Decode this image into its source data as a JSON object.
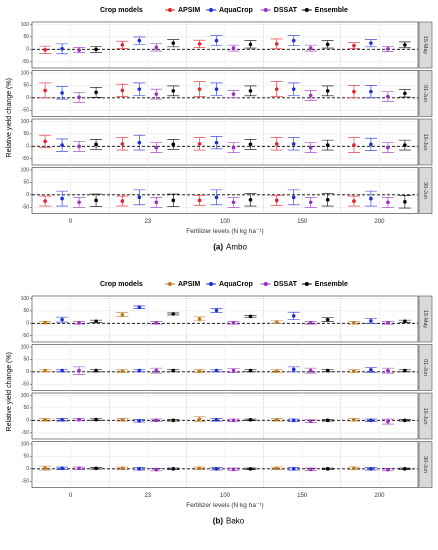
{
  "chart_data": [
    {
      "type": "errorbar",
      "legend_title": "Crop models",
      "caption_tag": "(a)",
      "caption": "Ambo",
      "y_label": "Relative yield change (%)",
      "x_label": "Fertilizer levels (N kg ha⁻¹)",
      "categories": [
        "0",
        "23",
        "100",
        "150",
        "200"
      ],
      "panels": [
        "15-May",
        "01-Jun",
        "15-Jun",
        "30-Jun"
      ],
      "ylim": [
        -75,
        110
      ],
      "yticks": [
        -50,
        0,
        50,
        100
      ],
      "reference_line": 0,
      "grid": true,
      "series": [
        {
          "name": "APSIM",
          "color": "#e8202a",
          "values": [
            [
              -2,
              18,
              22,
              22,
              15
            ],
            [
              30,
              30,
              35,
              35,
              25
            ],
            [
              20,
              10,
              10,
              10,
              5
            ],
            [
              -25,
              -25,
              -22,
              -22,
              -25
            ]
          ],
          "errors": [
            [
              15,
              15,
              15,
              20,
              12
            ],
            [
              30,
              25,
              30,
              30,
              25
            ],
            [
              25,
              25,
              25,
              25,
              30
            ],
            [
              20,
              20,
              20,
              20,
              20
            ]
          ]
        },
        {
          "name": "AquaCrop",
          "color": "#1f2fd6",
          "values": [
            [
              2,
              35,
              35,
              35,
              25
            ],
            [
              20,
              35,
              35,
              35,
              25
            ],
            [
              5,
              15,
              15,
              10,
              8
            ],
            [
              -15,
              -10,
              -10,
              -10,
              -15
            ]
          ],
          "errors": [
            [
              20,
              15,
              20,
              20,
              15
            ],
            [
              25,
              25,
              25,
              25,
              25
            ],
            [
              25,
              30,
              25,
              25,
              25
            ],
            [
              30,
              30,
              30,
              30,
              30
            ]
          ]
        },
        {
          "name": "DSSAT",
          "color": "#9b30c0",
          "values": [
            [
              -3,
              8,
              5,
              5,
              2
            ],
            [
              2,
              15,
              15,
              10,
              5
            ],
            [
              0,
              -5,
              -5,
              -5,
              -5
            ],
            [
              -30,
              -30,
              -30,
              -30,
              -30
            ]
          ],
          "errors": [
            [
              10,
              15,
              12,
              12,
              10
            ],
            [
              20,
              20,
              15,
              20,
              20
            ],
            [
              20,
              20,
              20,
              20,
              20
            ],
            [
              20,
              20,
              20,
              20,
              20
            ]
          ]
        },
        {
          "name": "Ensemble",
          "color": "#000000",
          "values": [
            [
              0,
              25,
              20,
              20,
              18
            ],
            [
              22,
              28,
              28,
              28,
              18
            ],
            [
              8,
              8,
              8,
              5,
              5
            ],
            [
              -22,
              -22,
              -20,
              -20,
              -28
            ]
          ],
          "errors": [
            [
              12,
              15,
              15,
              15,
              12
            ],
            [
              20,
              20,
              20,
              20,
              15
            ],
            [
              20,
              20,
              20,
              20,
              20
            ],
            [
              25,
              25,
              25,
              25,
              25
            ]
          ]
        }
      ]
    },
    {
      "type": "errorbar",
      "legend_title": "Crop models",
      "caption_tag": "(b)",
      "caption": "Bako",
      "y_label": "Relative yield change (%)",
      "x_label": "Fertilizer levels (N kg ha⁻¹)",
      "categories": [
        "0",
        "23",
        "100",
        "150",
        "200"
      ],
      "panels": [
        "15-May",
        "01-Jun",
        "15-Jun",
        "30-Jun"
      ],
      "ylim": [
        -75,
        110
      ],
      "yticks": [
        -50,
        0,
        50,
        100
      ],
      "reference_line": 0,
      "grid": true,
      "series": [
        {
          "name": "APSIM",
          "color": "#c0781e",
          "values": [
            [
              3,
              35,
              18,
              5,
              2
            ],
            [
              5,
              3,
              3,
              3,
              3
            ],
            [
              2,
              2,
              5,
              2,
              2
            ],
            [
              3,
              2,
              2,
              2,
              2
            ]
          ],
          "errors": [
            [
              5,
              8,
              8,
              5,
              5
            ],
            [
              5,
              5,
              5,
              5,
              5
            ],
            [
              5,
              5,
              10,
              5,
              5
            ],
            [
              8,
              5,
              5,
              5,
              5
            ]
          ]
        },
        {
          "name": "AquaCrop",
          "color": "#1f2fd6",
          "values": [
            [
              15,
              65,
              52,
              30,
              10
            ],
            [
              5,
              5,
              5,
              10,
              8
            ],
            [
              2,
              -2,
              2,
              0,
              0
            ],
            [
              2,
              0,
              0,
              0,
              0
            ]
          ],
          "errors": [
            [
              10,
              5,
              8,
              15,
              10
            ],
            [
              5,
              5,
              5,
              10,
              10
            ],
            [
              5,
              5,
              5,
              5,
              5
            ],
            [
              5,
              5,
              5,
              5,
              5
            ]
          ]
        },
        {
          "name": "DSSAT",
          "color": "#9b30c0",
          "values": [
            [
              2,
              2,
              2,
              2,
              2
            ],
            [
              5,
              5,
              5,
              5,
              5
            ],
            [
              3,
              0,
              0,
              -3,
              -5
            ],
            [
              2,
              -3,
              -2,
              -2,
              -3
            ]
          ],
          "errors": [
            [
              5,
              5,
              5,
              5,
              5
            ],
            [
              15,
              10,
              8,
              10,
              10
            ],
            [
              5,
              5,
              5,
              5,
              10
            ],
            [
              5,
              5,
              5,
              5,
              5
            ]
          ]
        },
        {
          "name": "Ensemble",
          "color": "#000000",
          "values": [
            [
              8,
              38,
              28,
              15,
              8
            ],
            [
              5,
              5,
              5,
              5,
              5
            ],
            [
              3,
              0,
              2,
              0,
              0
            ],
            [
              2,
              0,
              0,
              0,
              0
            ]
          ],
          "errors": [
            [
              5,
              4,
              4,
              8,
              5
            ],
            [
              5,
              5,
              5,
              5,
              5
            ],
            [
              3,
              3,
              3,
              3,
              3
            ],
            [
              3,
              3,
              3,
              3,
              3
            ]
          ]
        }
      ]
    }
  ]
}
